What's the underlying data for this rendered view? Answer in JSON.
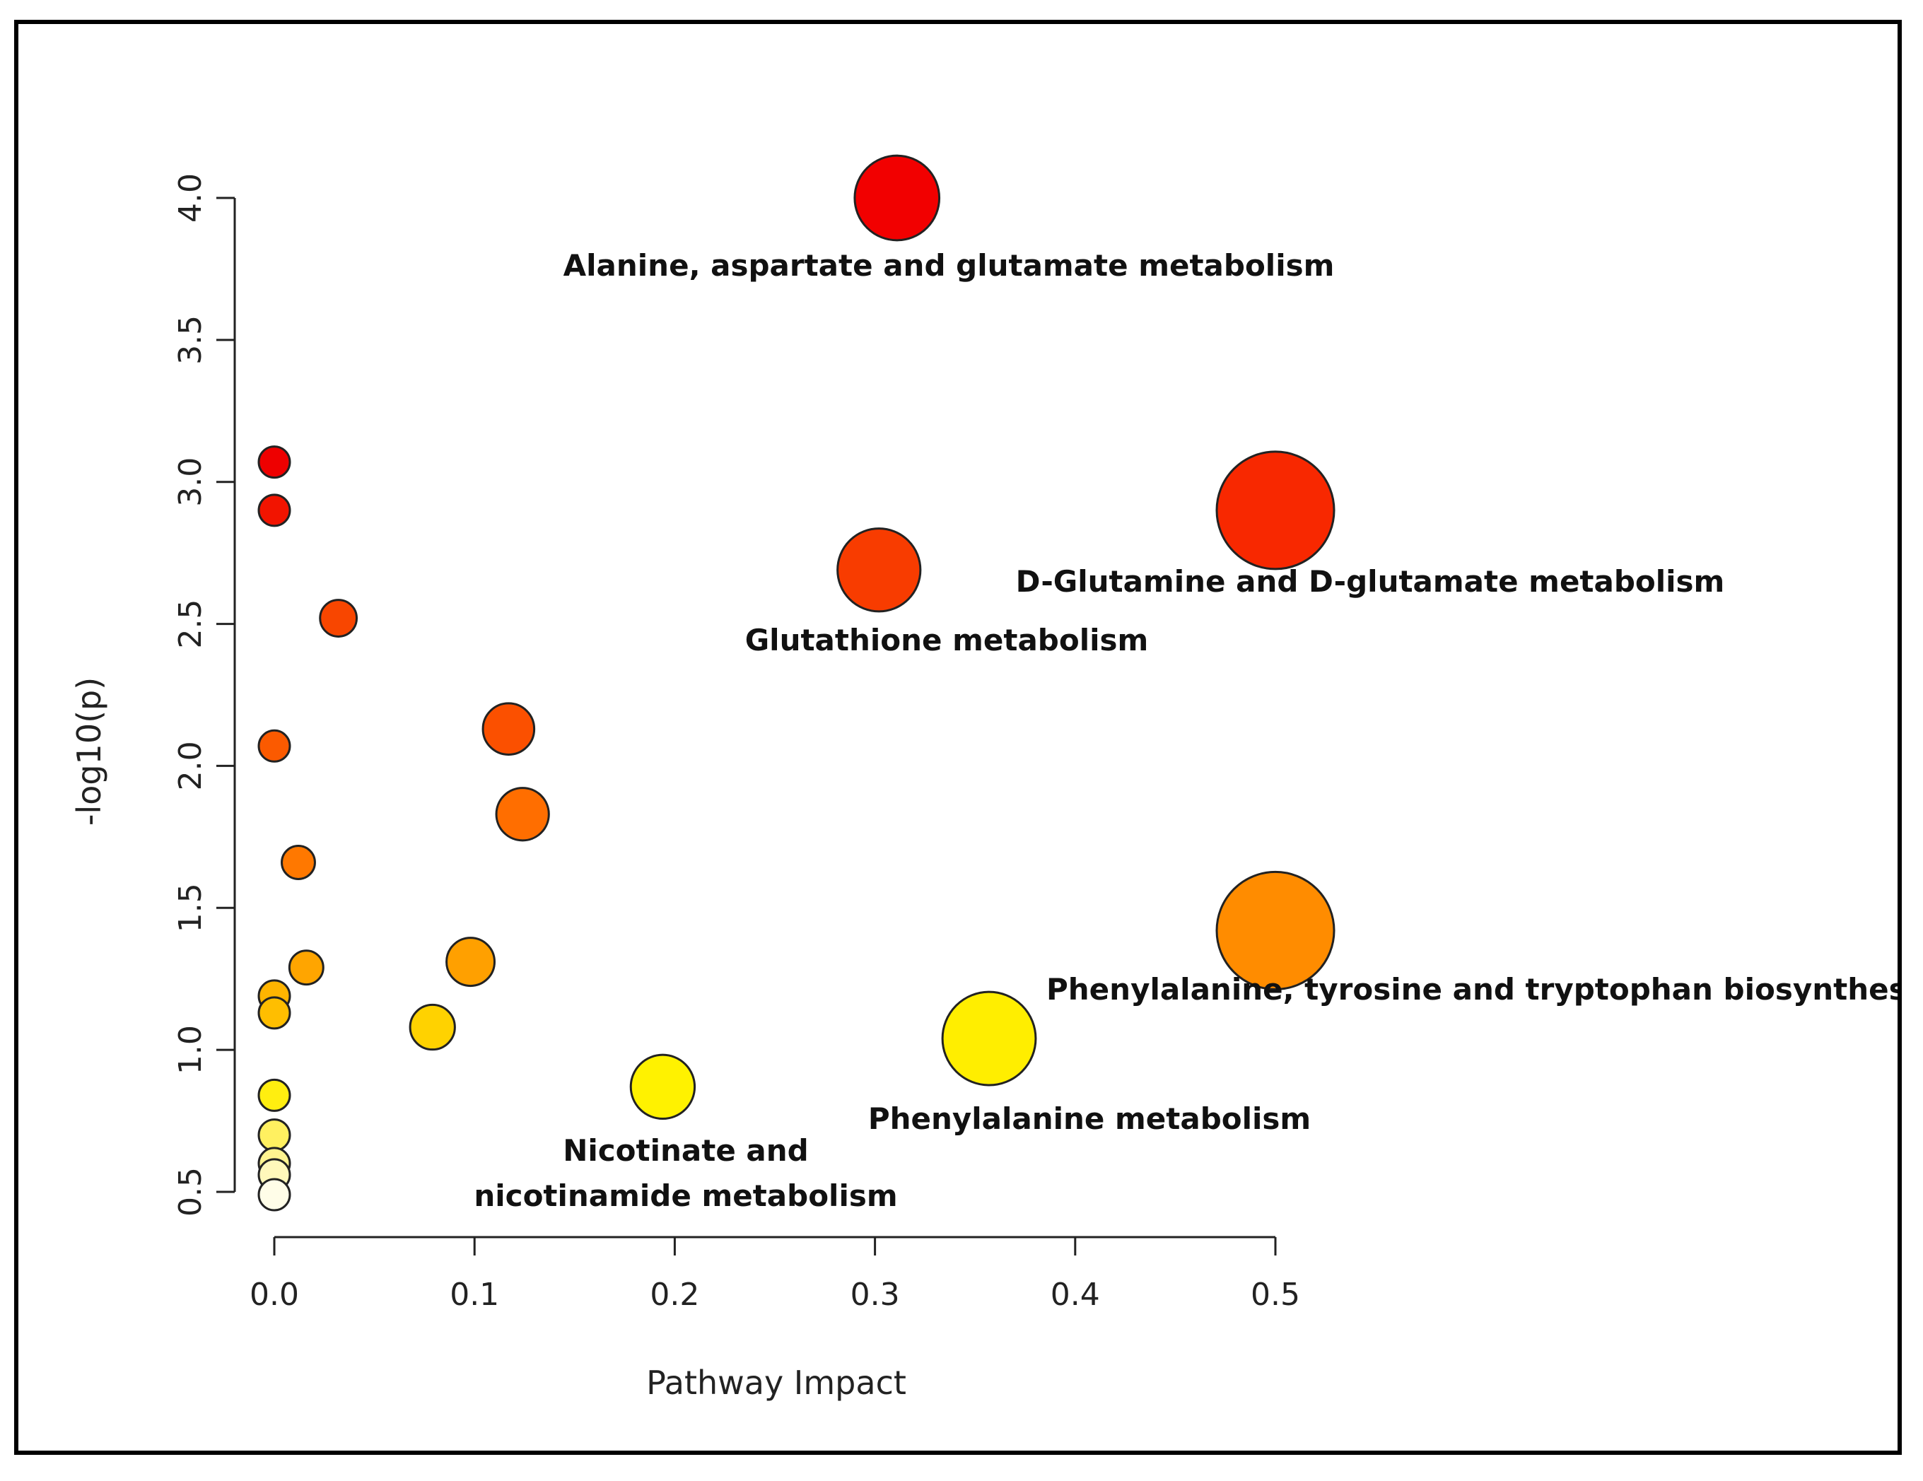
{
  "chart_data": {
    "type": "scatter",
    "title": "",
    "xlabel": "Pathway Impact",
    "ylabel": "-log10(p)",
    "xlim": [
      0.0,
      0.5
    ],
    "ylim": [
      0.5,
      4.0
    ],
    "xticks": [
      "0.0",
      "0.1",
      "0.2",
      "0.3",
      "0.4",
      "0.5"
    ],
    "yticks": [
      "0.5",
      "1.0",
      "1.5",
      "2.0",
      "2.5",
      "3.0",
      "3.5",
      "4.0"
    ],
    "grid": false,
    "size_encodes": "Pathway Impact",
    "color_encodes": "-log10(p) (red = high, white = low)",
    "points": [
      {
        "x": 0.311,
        "y": 4.0,
        "size": 0.31,
        "color": "#f20000",
        "label": "Alanine, aspartate and glutamate metabolism"
      },
      {
        "x": 0.5,
        "y": 2.9,
        "size": 0.5,
        "color": "#f82800",
        "label": "D-Glutamine and D-glutamate metabolism"
      },
      {
        "x": 0.302,
        "y": 2.69,
        "size": 0.3,
        "color": "#f83c00",
        "label": "Glutathione metabolism"
      },
      {
        "x": 0.5,
        "y": 1.42,
        "size": 0.5,
        "color": "#ff8c00",
        "label": "Phenylalanine, tyrosine and tryptophan biosynthesis"
      },
      {
        "x": 0.357,
        "y": 1.04,
        "size": 0.36,
        "color": "#ffee00",
        "label": "Phenylalanine metabolism"
      },
      {
        "x": 0.194,
        "y": 0.87,
        "size": 0.19,
        "color": "#fff200",
        "label": "Nicotinate and\nnicotinamide metabolism"
      },
      {
        "x": 0.0,
        "y": 3.07,
        "size": 0.0,
        "color": "#ee0000",
        "label": ""
      },
      {
        "x": 0.0,
        "y": 2.9,
        "size": 0.0,
        "color": "#f21400",
        "label": ""
      },
      {
        "x": 0.032,
        "y": 2.52,
        "size": 0.032,
        "color": "#f84600",
        "label": ""
      },
      {
        "x": 0.0,
        "y": 2.07,
        "size": 0.0,
        "color": "#fb5a00",
        "label": ""
      },
      {
        "x": 0.117,
        "y": 2.13,
        "size": 0.117,
        "color": "#fb5000",
        "label": ""
      },
      {
        "x": 0.124,
        "y": 1.83,
        "size": 0.124,
        "color": "#ff6e00",
        "label": ""
      },
      {
        "x": 0.012,
        "y": 1.66,
        "size": 0.012,
        "color": "#ff7800",
        "label": ""
      },
      {
        "x": 0.098,
        "y": 1.31,
        "size": 0.098,
        "color": "#ffa000",
        "label": ""
      },
      {
        "x": 0.016,
        "y": 1.29,
        "size": 0.016,
        "color": "#ffa500",
        "label": ""
      },
      {
        "x": 0.0,
        "y": 1.19,
        "size": 0.0,
        "color": "#ffb400",
        "label": ""
      },
      {
        "x": 0.0,
        "y": 1.13,
        "size": 0.0,
        "color": "#ffbe00",
        "label": ""
      },
      {
        "x": 0.079,
        "y": 1.08,
        "size": 0.079,
        "color": "#ffd200",
        "label": ""
      },
      {
        "x": 0.0,
        "y": 0.84,
        "size": 0.0,
        "color": "#ffee10",
        "label": ""
      },
      {
        "x": 0.0,
        "y": 0.7,
        "size": 0.0,
        "color": "#fff060",
        "label": ""
      },
      {
        "x": 0.0,
        "y": 0.6,
        "size": 0.0,
        "color": "#fff490",
        "label": ""
      },
      {
        "x": 0.0,
        "y": 0.56,
        "size": 0.0,
        "color": "#fff8bb",
        "label": ""
      },
      {
        "x": 0.0,
        "y": 0.49,
        "size": 0.0,
        "color": "#fffde8",
        "label": ""
      }
    ]
  }
}
